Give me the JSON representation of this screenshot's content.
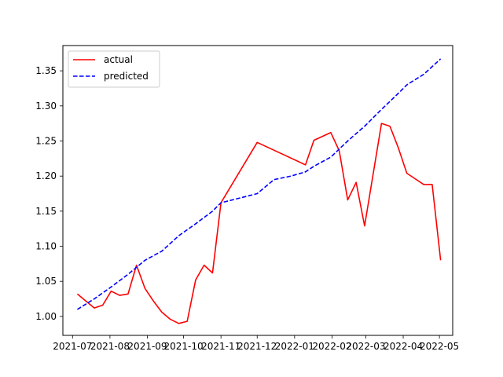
{
  "chart_data": {
    "type": "line",
    "title": "",
    "xlabel": "",
    "ylabel": "",
    "x_tick_labels": [
      "2021-07",
      "2021-08",
      "2021-09",
      "2021-10",
      "2021-11",
      "2021-12",
      "2022-01",
      "2022-02",
      "2022-03",
      "2022-04",
      "2022-05"
    ],
    "y_tick_labels": [
      "1.00",
      "1.05",
      "1.10",
      "1.15",
      "1.20",
      "1.25",
      "1.30",
      "1.35"
    ],
    "ylim": [
      0.973,
      1.386
    ],
    "xlim": [
      "2021-06-23",
      "2022-05-12"
    ],
    "grid": false,
    "legend_position": "upper-left",
    "series": [
      {
        "name": "actual",
        "color": "#ff0000",
        "style": "solid",
        "points": [
          [
            "2021-07-05",
            1.032
          ],
          [
            "2021-07-12",
            1.022
          ],
          [
            "2021-07-19",
            1.012
          ],
          [
            "2021-07-26",
            1.016
          ],
          [
            "2021-08-02",
            1.036
          ],
          [
            "2021-08-09",
            1.03
          ],
          [
            "2021-08-16",
            1.032
          ],
          [
            "2021-08-23",
            1.073
          ],
          [
            "2021-08-30",
            1.04
          ],
          [
            "2021-09-06",
            1.022
          ],
          [
            "2021-09-13",
            1.006
          ],
          [
            "2021-09-20",
            0.996
          ],
          [
            "2021-09-27",
            0.99
          ],
          [
            "2021-10-04",
            0.993
          ],
          [
            "2021-10-11",
            1.052
          ],
          [
            "2021-10-18",
            1.073
          ],
          [
            "2021-10-25",
            1.062
          ],
          [
            "2021-11-01",
            1.162
          ],
          [
            "2021-12-01",
            1.248
          ],
          [
            "2022-01-10",
            1.216
          ],
          [
            "2022-01-17",
            1.251
          ],
          [
            "2022-01-31",
            1.262
          ],
          [
            "2022-02-07",
            1.236
          ],
          [
            "2022-02-14",
            1.166
          ],
          [
            "2022-02-21",
            1.191
          ],
          [
            "2022-02-28",
            1.129
          ],
          [
            "2022-03-14",
            1.275
          ],
          [
            "2022-03-21",
            1.271
          ],
          [
            "2022-03-28",
            1.24
          ],
          [
            "2022-04-04",
            1.204
          ],
          [
            "2022-04-11",
            1.196
          ],
          [
            "2022-04-18",
            1.188
          ],
          [
            "2022-04-25",
            1.188
          ],
          [
            "2022-05-02",
            1.08
          ]
        ]
      },
      {
        "name": "predicted",
        "color": "#0000ff",
        "style": "dashed",
        "points": [
          [
            "2021-07-05",
            1.01
          ],
          [
            "2021-07-19",
            1.025
          ],
          [
            "2021-08-02",
            1.042
          ],
          [
            "2021-08-16",
            1.06
          ],
          [
            "2021-08-30",
            1.08
          ],
          [
            "2021-09-13",
            1.093
          ],
          [
            "2021-09-27",
            1.115
          ],
          [
            "2021-10-11",
            1.132
          ],
          [
            "2021-10-25",
            1.15
          ],
          [
            "2021-11-01",
            1.162
          ],
          [
            "2021-11-15",
            1.168
          ],
          [
            "2021-12-01",
            1.175
          ],
          [
            "2021-12-15",
            1.195
          ],
          [
            "2021-12-29",
            1.2
          ],
          [
            "2022-01-10",
            1.206
          ],
          [
            "2022-01-17",
            1.214
          ],
          [
            "2022-01-31",
            1.227
          ],
          [
            "2022-02-14",
            1.25
          ],
          [
            "2022-02-28",
            1.271
          ],
          [
            "2022-03-14",
            1.295
          ],
          [
            "2022-03-28",
            1.318
          ],
          [
            "2022-04-04",
            1.33
          ],
          [
            "2022-04-18",
            1.345
          ],
          [
            "2022-05-02",
            1.367
          ]
        ]
      }
    ]
  }
}
